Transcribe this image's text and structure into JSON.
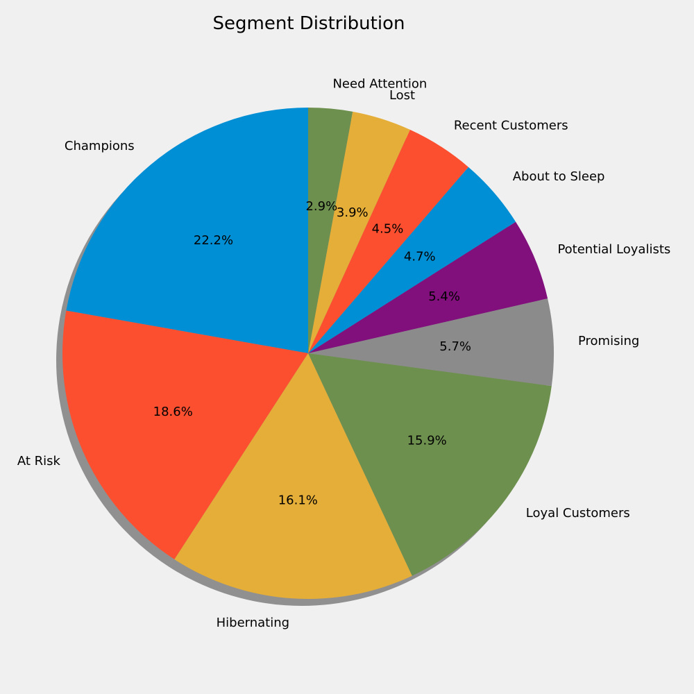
{
  "chart_data": {
    "type": "pie",
    "title": "Segment Distribution",
    "shadow": true,
    "start": "top, counterclockwise",
    "slices": [
      {
        "label": "Champions",
        "percent": 22.2,
        "pct_label": "22.2%",
        "color": "#008fd5"
      },
      {
        "label": "At Risk",
        "percent": 18.6,
        "pct_label": "18.6%",
        "color": "#fc4f30"
      },
      {
        "label": "Hibernating",
        "percent": 16.1,
        "pct_label": "16.1%",
        "color": "#e5ae38"
      },
      {
        "label": "Loyal Customers",
        "percent": 15.9,
        "pct_label": "15.9%",
        "color": "#6d904f"
      },
      {
        "label": "Promising",
        "percent": 5.7,
        "pct_label": "5.7%",
        "color": "#8b8b8b"
      },
      {
        "label": "Potential Loyalists",
        "percent": 5.4,
        "pct_label": "5.4%",
        "color": "#810f7c"
      },
      {
        "label": "About to Sleep",
        "percent": 4.7,
        "pct_label": "4.7%",
        "color": "#008fd5"
      },
      {
        "label": "Recent Customers",
        "percent": 4.5,
        "pct_label": "4.5%",
        "color": "#fc4f30"
      },
      {
        "label": "Lost",
        "percent": 3.9,
        "pct_label": "3.9%",
        "color": "#e5ae38"
      },
      {
        "label": "Need Attention",
        "percent": 2.9,
        "pct_label": "2.9%",
        "color": "#6d904f"
      }
    ]
  }
}
